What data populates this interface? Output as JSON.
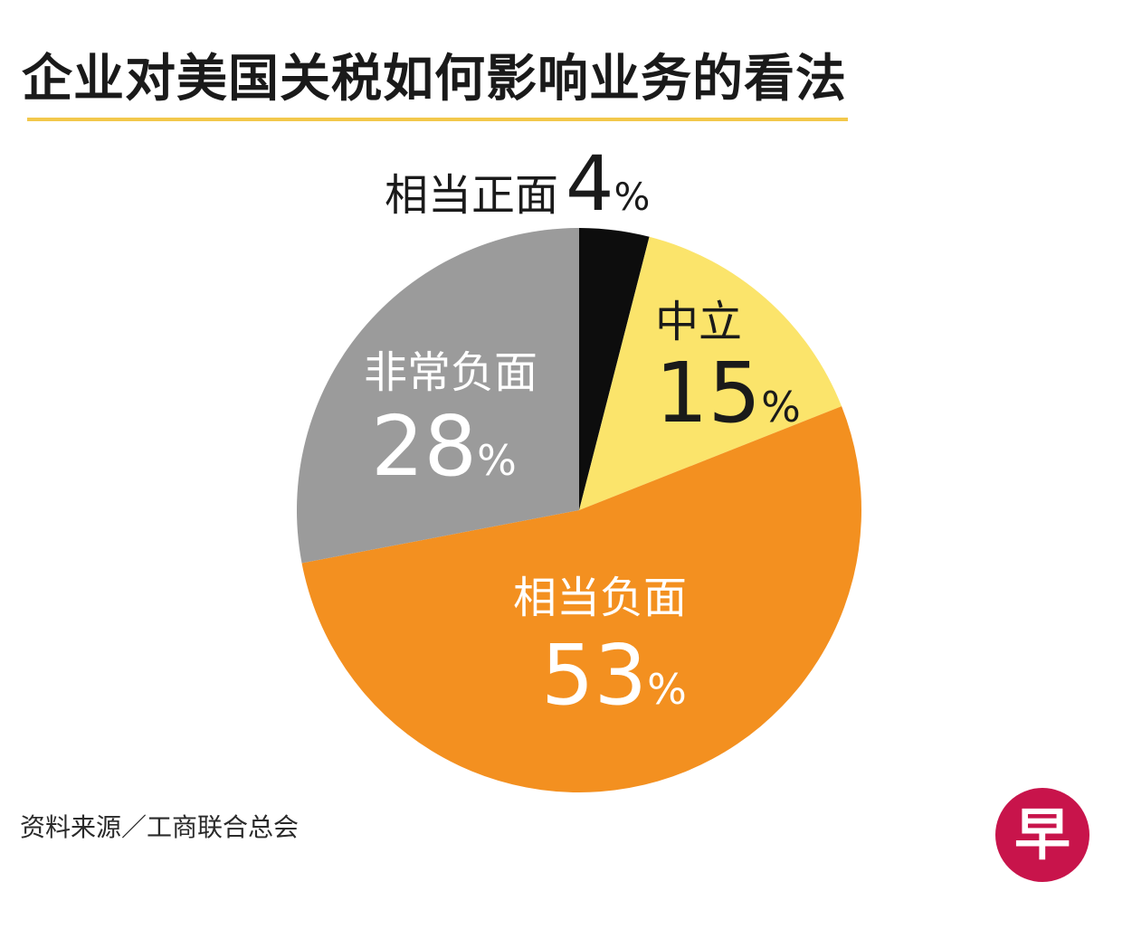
{
  "title": "企业对美国关税如何影响业务的看法",
  "source": "资料来源／工商联合总会",
  "logo_char": "早",
  "colors": {
    "accent_rule": "#f2c84b",
    "logo": "#c8144b"
  },
  "chart_data": {
    "type": "pie",
    "title": "企业对美国关税如何影响业务的看法",
    "slices": [
      {
        "label": "相当正面",
        "value": 4,
        "display": "4",
        "unit": "%",
        "color": "#0d0d0d"
      },
      {
        "label": "中立",
        "value": 15,
        "display": "15",
        "unit": "%",
        "color": "#fbe46b"
      },
      {
        "label": "相当负面",
        "value": 53,
        "display": "53",
        "unit": "%",
        "color": "#f39020"
      },
      {
        "label": "非常负面",
        "value": 28,
        "display": "28",
        "unit": "%",
        "color": "#9b9b9b"
      }
    ],
    "start": "top",
    "direction": "clockwise",
    "legend": "none"
  }
}
